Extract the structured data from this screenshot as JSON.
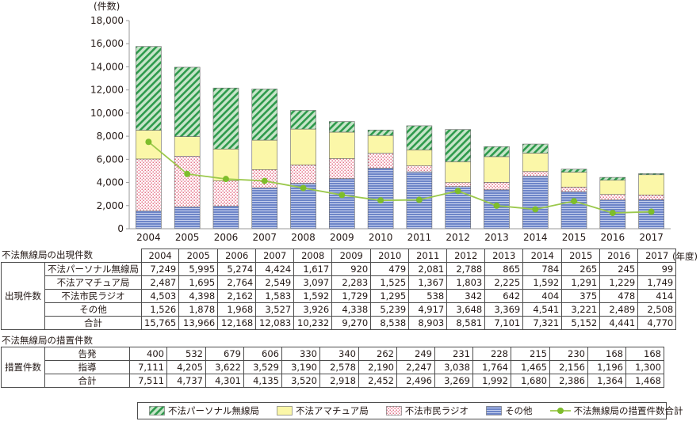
{
  "colors": {
    "pirate": "#2e9a4c",
    "pirate_bg": "#c7e5c9",
    "amateur": "#fbf7a8",
    "citizen_bg": "#ffffff",
    "citizen_dot": "#e05a73",
    "other": "#6d85c8",
    "other_line": "#c6d0ee",
    "measure_line": "#9bc84b",
    "measure_dot": "#7ebd2b",
    "axis": "#9a9a9a"
  },
  "chart_data": {
    "type": "bar",
    "stacked": true,
    "y_unit": "(件数)",
    "ylim": [
      0,
      18000
    ],
    "yticks": [
      "0",
      "2,000",
      "4,000",
      "6,000",
      "8,000",
      "10,000",
      "12,000",
      "14,000",
      "16,000",
      "18,000"
    ],
    "categories": [
      "2004",
      "2005",
      "2006",
      "2007",
      "2008",
      "2009",
      "2010",
      "2011",
      "2012",
      "2013",
      "2014",
      "2015",
      "2016",
      "2017"
    ],
    "series": [
      {
        "name": "その他",
        "key": "other",
        "values": [
          1526,
          1878,
          1968,
          3527,
          3926,
          4338,
          5239,
          4917,
          3648,
          3369,
          4541,
          3221,
          2489,
          2508
        ]
      },
      {
        "name": "不法市民ラジオ",
        "key": "citizen",
        "values": [
          4503,
          4398,
          2162,
          1583,
          1592,
          1729,
          1295,
          538,
          342,
          642,
          404,
          375,
          478,
          414
        ]
      },
      {
        "name": "不法アマチュア局",
        "key": "amateur",
        "values": [
          2487,
          1695,
          2764,
          2549,
          3097,
          2283,
          1525,
          1367,
          1803,
          2225,
          1592,
          1291,
          1229,
          1749
        ]
      },
      {
        "name": "不法パーソナル無線局",
        "key": "pirate",
        "values": [
          7249,
          5995,
          5274,
          4424,
          1617,
          920,
          479,
          2081,
          2788,
          865,
          784,
          265,
          245,
          99
        ]
      }
    ],
    "line": {
      "name": "不法無線局の措置件数合計",
      "values": [
        7511,
        4737,
        4301,
        4135,
        3520,
        2918,
        2452,
        2496,
        3269,
        1992,
        1680,
        2386,
        1364,
        1468
      ]
    }
  },
  "table_appear": {
    "title": "不法無線局の出現件数",
    "year_suffix": "(年度)",
    "group": "出現件数",
    "years": [
      "2004",
      "2005",
      "2006",
      "2007",
      "2008",
      "2009",
      "2010",
      "2011",
      "2012",
      "2013",
      "2014",
      "2015",
      "2016",
      "2017"
    ],
    "rows": [
      {
        "label": "不法パーソナル無線局",
        "values": [
          "7,249",
          "5,995",
          "5,274",
          "4,424",
          "1,617",
          "920",
          "479",
          "2,081",
          "2,788",
          "865",
          "784",
          "265",
          "245",
          "99"
        ]
      },
      {
        "label": "不法アマチュア局",
        "values": [
          "2,487",
          "1,695",
          "2,764",
          "2,549",
          "3,097",
          "2,283",
          "1,525",
          "1,367",
          "1,803",
          "2,225",
          "1,592",
          "1,291",
          "1,229",
          "1,749"
        ]
      },
      {
        "label": "不法市民ラジオ",
        "values": [
          "4,503",
          "4,398",
          "2,162",
          "1,583",
          "1,592",
          "1,729",
          "1,295",
          "538",
          "342",
          "642",
          "404",
          "375",
          "478",
          "414"
        ]
      },
      {
        "label": "その他",
        "values": [
          "1,526",
          "1,878",
          "1,968",
          "3,527",
          "3,926",
          "4,338",
          "5,239",
          "4,917",
          "3,648",
          "3,369",
          "4,541",
          "3,221",
          "2,489",
          "2,508"
        ]
      },
      {
        "label": "合計",
        "values": [
          "15,765",
          "13,966",
          "12,168",
          "12,083",
          "10,232",
          "9,270",
          "8,538",
          "8,903",
          "8,581",
          "7,101",
          "7,321",
          "5,152",
          "4,441",
          "4,770"
        ]
      }
    ]
  },
  "table_measure": {
    "title": "不法無線局の措置件数",
    "group": "措置件数",
    "rows": [
      {
        "label": "告発",
        "values": [
          "400",
          "532",
          "679",
          "606",
          "330",
          "340",
          "262",
          "249",
          "231",
          "228",
          "215",
          "230",
          "168",
          "168"
        ]
      },
      {
        "label": "指導",
        "values": [
          "7,111",
          "4,205",
          "3,622",
          "3,529",
          "3,190",
          "2,578",
          "2,190",
          "2,247",
          "3,038",
          "1,764",
          "1,465",
          "2,156",
          "1,196",
          "1,300"
        ]
      },
      {
        "label": "合計",
        "values": [
          "7,511",
          "4,737",
          "4,301",
          "4,135",
          "3,520",
          "2,918",
          "2,452",
          "2,496",
          "3,269",
          "1,992",
          "1,680",
          "2,386",
          "1,364",
          "1,468"
        ]
      }
    ]
  },
  "legend": [
    {
      "key": "pirate",
      "label": "不法パーソナル無線局",
      "icon": "hatch-swatch"
    },
    {
      "key": "amateur",
      "label": "不法アマチュア局",
      "icon": "yellow-swatch"
    },
    {
      "key": "citizen",
      "label": "不法市民ラジオ",
      "icon": "dot-swatch"
    },
    {
      "key": "other",
      "label": "その他",
      "icon": "stripe-swatch"
    },
    {
      "key": "line",
      "label": "不法無線局の措置件数合計",
      "icon": "line-marker"
    }
  ]
}
